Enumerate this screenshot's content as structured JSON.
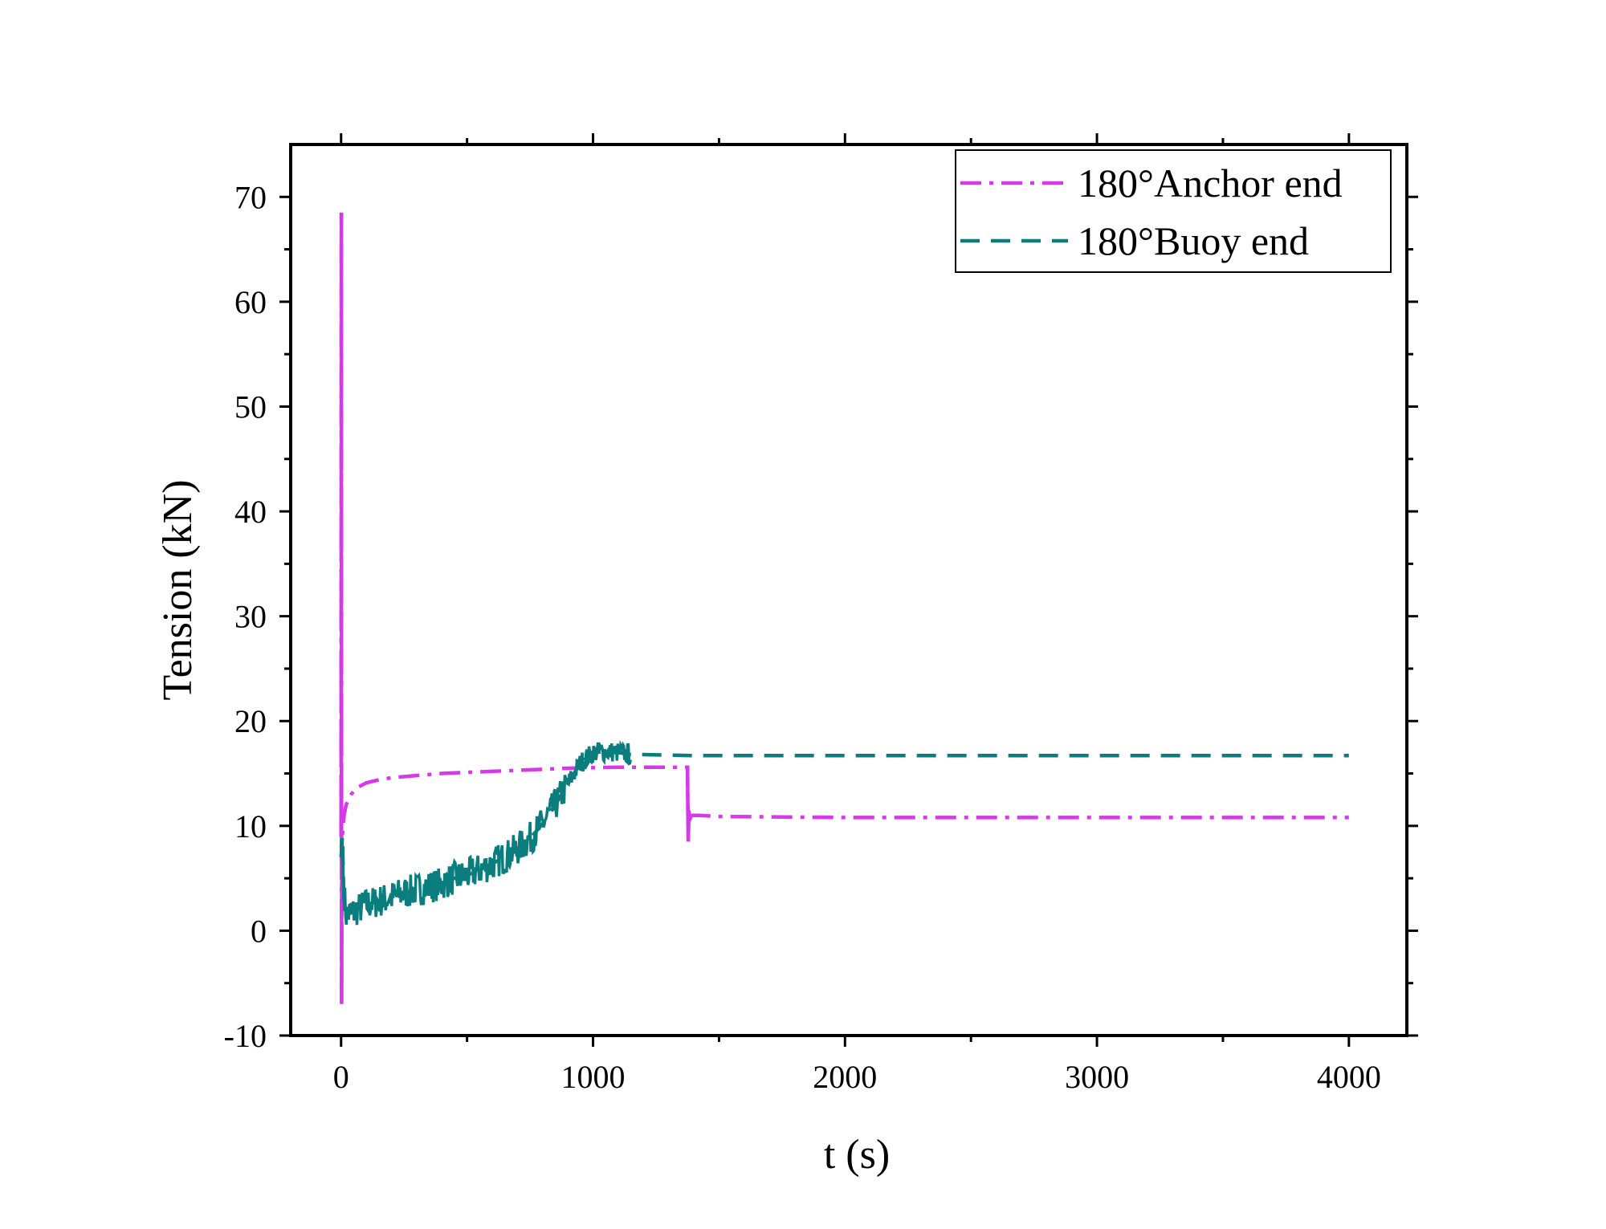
{
  "chart_data": {
    "type": "line",
    "xlabel": "t (s)",
    "ylabel": "Tension (kN)",
    "xlim": [
      -200,
      4230
    ],
    "ylim": [
      -10,
      75
    ],
    "x_ticks": [
      0,
      1000,
      2000,
      3000,
      4000
    ],
    "x_tick_labels": [
      "0",
      "1000",
      "2000",
      "3000",
      "4000"
    ],
    "y_ticks": [
      -10,
      0,
      10,
      20,
      30,
      40,
      50,
      60,
      70
    ],
    "y_tick_labels": [
      "-10",
      "0",
      "10",
      "20",
      "30",
      "40",
      "50",
      "60",
      "70"
    ],
    "grid": false,
    "legend_position": "top-right",
    "series": [
      {
        "name": "180°Anchor end",
        "color": "#d63ae8",
        "style": "dash-dot",
        "x": [
          0,
          1,
          2,
          3,
          5,
          8,
          12,
          20,
          40,
          60,
          100,
          150,
          200,
          300,
          400,
          500,
          600,
          700,
          800,
          900,
          1000,
          1100,
          1200,
          1300,
          1375,
          1376,
          1378,
          1380,
          1382,
          1390,
          1420,
          1500,
          2000,
          2500,
          3000,
          3500,
          4000
        ],
        "y": [
          9,
          68.5,
          -7,
          8,
          9,
          10,
          11,
          12,
          13,
          13.6,
          14.1,
          14.4,
          14.6,
          14.8,
          15,
          15.1,
          15.2,
          15.3,
          15.4,
          15.5,
          15.55,
          15.6,
          15.6,
          15.6,
          15.6,
          12.5,
          8.5,
          11.5,
          10.5,
          11,
          11,
          10.9,
          10.8,
          10.8,
          10.8,
          10.8,
          10.8
        ]
      },
      {
        "name": "180°Buoy end",
        "color": "#0b7d7d",
        "style": "dashed",
        "x": [
          0,
          5,
          10,
          20,
          50,
          100,
          150,
          200,
          250,
          300,
          350,
          400,
          450,
          500,
          550,
          600,
          650,
          700,
          750,
          800,
          850,
          900,
          950,
          1000,
          1050,
          1100,
          1150,
          1200,
          1400,
          2000,
          3000,
          4000
        ],
        "y": [
          7,
          9,
          4,
          1.5,
          1.8,
          2.5,
          2.8,
          3.2,
          3.6,
          3.9,
          4.2,
          4.5,
          5,
          5.3,
          5.8,
          6.4,
          7,
          7.8,
          8.8,
          10.2,
          12,
          14,
          16,
          17,
          17.1,
          17,
          16.8,
          16.8,
          16.7,
          16.7,
          16.7,
          16.7
        ]
      }
    ]
  }
}
